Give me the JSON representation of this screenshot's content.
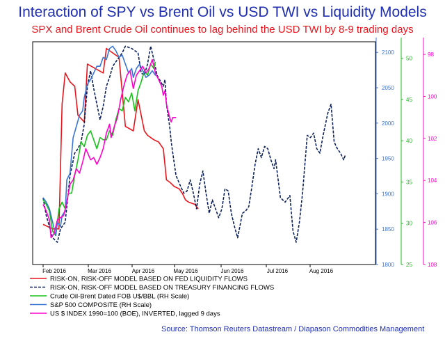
{
  "chart_data": {
    "type": "line",
    "title": "Interaction of SPY vs Brent Oil vs USD TWI vs Liquidity Models",
    "subtitle": "SPX and Brent Crude Oil continues to lag behind the USD TWI by 8-9 trading days",
    "source": "Source: Thomson Reuters Datastream / Diapason Commodities Management",
    "x_labels": [
      "Feb 2016",
      "Mar 2016",
      "Apr 2016",
      "May 2016",
      "Jun 2016",
      "Jul 2016",
      "Aug 2016"
    ],
    "axes": {
      "sp500": {
        "ticks": [
          "1800",
          "1850",
          "1900",
          "1950",
          "2000",
          "2050",
          "2100"
        ],
        "range": [
          1800,
          2115
        ],
        "color": "#3a75d6"
      },
      "brent": {
        "ticks": [
          "25",
          "30",
          "35",
          "40",
          "45",
          "50"
        ],
        "range": [
          25,
          52
        ],
        "color": "#18c21a"
      },
      "usd_inverted": {
        "ticks": [
          "98",
          "100",
          "102",
          "104",
          "106",
          "108"
        ],
        "range": [
          97.4,
          108
        ],
        "color": "#ff00cc"
      }
    },
    "series": [
      {
        "name": "RISK-ON, RISK-OFF MODEL BASED ON FED LIQUIDITY FLOWS",
        "color": "#e8141b",
        "style": "solid",
        "points": [
          [
            0,
            0.18
          ],
          [
            0.3,
            0.16
          ],
          [
            0.5,
            0.16
          ],
          [
            0.6,
            0.72
          ],
          [
            0.7,
            0.86
          ],
          [
            0.85,
            0.82
          ],
          [
            1.0,
            0.8
          ],
          [
            1.1,
            0.67
          ],
          [
            1.3,
            0.64
          ],
          [
            1.4,
            0.9
          ],
          [
            1.9,
            0.86
          ],
          [
            2.0,
            0.97
          ],
          [
            2.4,
            0.93
          ],
          [
            2.6,
            0.62
          ],
          [
            2.85,
            0.6
          ],
          [
            3.0,
            0.74
          ],
          [
            3.2,
            0.6
          ],
          [
            3.3,
            0.58
          ],
          [
            3.5,
            0.56
          ],
          [
            3.65,
            0.55
          ],
          [
            3.8,
            0.52
          ],
          [
            3.9,
            0.38
          ],
          [
            4.0,
            0.37
          ],
          [
            4.15,
            0.35
          ],
          [
            4.3,
            0.34
          ],
          [
            4.4,
            0.32
          ],
          [
            4.5,
            0.29
          ],
          [
            4.6,
            0.28
          ],
          [
            4.8,
            0.27
          ],
          [
            4.9,
            0.25
          ]
        ]
      },
      {
        "name": "RISK-ON, RISK-OFF  MODEL BASED ON TREASURY FINANCING FLOWS",
        "color": "#0b1f5a",
        "style": "dashed",
        "points": [
          [
            0,
            0.3
          ],
          [
            0.1,
            0.22
          ],
          [
            0.2,
            0.17
          ],
          [
            0.3,
            0.12
          ],
          [
            0.45,
            0.1
          ],
          [
            0.55,
            0.16
          ],
          [
            0.7,
            0.19
          ],
          [
            0.85,
            0.4
          ],
          [
            1.0,
            0.5
          ],
          [
            1.1,
            0.52
          ],
          [
            1.2,
            0.55
          ],
          [
            1.3,
            0.63
          ],
          [
            1.4,
            0.8
          ],
          [
            1.5,
            0.87
          ],
          [
            1.6,
            0.79
          ],
          [
            1.7,
            0.72
          ],
          [
            1.8,
            0.65
          ],
          [
            1.9,
            0.71
          ],
          [
            2.0,
            0.8
          ],
          [
            2.1,
            0.84
          ],
          [
            2.2,
            0.89
          ],
          [
            2.3,
            0.91
          ],
          [
            2.5,
            0.95
          ],
          [
            2.6,
            0.98
          ],
          [
            2.8,
            0.97
          ],
          [
            3.0,
            0.95
          ],
          [
            3.1,
            0.86
          ],
          [
            3.2,
            0.85
          ],
          [
            3.3,
            0.9
          ],
          [
            3.4,
            0.98
          ],
          [
            3.5,
            0.92
          ],
          [
            3.6,
            0.85
          ],
          [
            3.8,
            0.8
          ],
          [
            3.85,
            0.83
          ],
          [
            3.9,
            0.72
          ],
          [
            4.0,
            0.62
          ],
          [
            4.05,
            0.55
          ],
          [
            4.1,
            0.5
          ],
          [
            4.2,
            0.4
          ],
          [
            4.35,
            0.35
          ],
          [
            4.45,
            0.32
          ],
          [
            4.55,
            0.33
          ],
          [
            4.65,
            0.38
          ],
          [
            4.75,
            0.32
          ],
          [
            4.85,
            0.25
          ],
          [
            4.95,
            0.36
          ],
          [
            5.05,
            0.42
          ],
          [
            5.15,
            0.32
          ],
          [
            5.25,
            0.23
          ],
          [
            5.35,
            0.29
          ],
          [
            5.45,
            0.25
          ],
          [
            5.55,
            0.21
          ],
          [
            5.65,
            0.25
          ],
          [
            5.75,
            0.34
          ],
          [
            5.85,
            0.33
          ],
          [
            5.95,
            0.23
          ],
          [
            6.05,
            0.17
          ],
          [
            6.15,
            0.12
          ],
          [
            6.3,
            0.23
          ],
          [
            6.4,
            0.24
          ],
          [
            6.5,
            0.26
          ],
          [
            6.6,
            0.35
          ],
          [
            6.7,
            0.45
          ],
          [
            6.8,
            0.52
          ],
          [
            6.9,
            0.48
          ],
          [
            7.0,
            0.53
          ],
          [
            7.1,
            0.52
          ],
          [
            7.2,
            0.47
          ],
          [
            7.3,
            0.43
          ],
          [
            7.35,
            0.47
          ],
          [
            7.5,
            0.3
          ],
          [
            7.65,
            0.28
          ],
          [
            7.8,
            0.31
          ],
          [
            7.9,
            0.15
          ],
          [
            8.0,
            0.1
          ],
          [
            8.1,
            0.19
          ],
          [
            8.2,
            0.32
          ],
          [
            8.35,
            0.58
          ],
          [
            8.45,
            0.57
          ],
          [
            8.55,
            0.59
          ],
          [
            8.65,
            0.52
          ],
          [
            8.75,
            0.5
          ],
          [
            8.85,
            0.58
          ],
          [
            9.0,
            0.68
          ],
          [
            9.1,
            0.72
          ],
          [
            9.2,
            0.55
          ],
          [
            9.3,
            0.52
          ],
          [
            9.4,
            0.5
          ],
          [
            9.5,
            0.47
          ],
          [
            9.55,
            0.49
          ]
        ]
      },
      {
        "name": "Crude Oil-Brent Dated FOB U$/BBL (RH Scale)",
        "color": "#18c21a",
        "style": "solid",
        "points": [
          [
            0,
            0.29
          ],
          [
            0.1,
            0.27
          ],
          [
            0.2,
            0.24
          ],
          [
            0.3,
            0.15
          ],
          [
            0.4,
            0.13
          ],
          [
            0.5,
            0.25
          ],
          [
            0.6,
            0.28
          ],
          [
            0.7,
            0.25
          ],
          [
            0.8,
            0.32
          ],
          [
            0.9,
            0.32
          ],
          [
            1.0,
            0.4
          ],
          [
            1.1,
            0.47
          ],
          [
            1.2,
            0.55
          ],
          [
            1.3,
            0.53
          ],
          [
            1.4,
            0.58
          ],
          [
            1.5,
            0.6
          ],
          [
            1.6,
            0.56
          ],
          [
            1.7,
            0.52
          ],
          [
            1.8,
            0.57
          ],
          [
            1.9,
            0.56
          ],
          [
            2.0,
            0.56
          ],
          [
            2.1,
            0.6
          ],
          [
            2.2,
            0.58
          ],
          [
            2.3,
            0.65
          ],
          [
            2.4,
            0.7
          ],
          [
            2.5,
            0.69
          ],
          [
            2.6,
            0.75
          ],
          [
            2.7,
            0.73
          ],
          [
            2.8,
            0.77
          ],
          [
            2.9,
            0.69
          ],
          [
            3.0,
            0.78
          ],
          [
            3.1,
            0.82
          ],
          [
            3.2,
            0.87
          ],
          [
            3.3,
            0.85
          ],
          [
            3.4,
            0.9
          ],
          [
            3.5,
            0.88
          ],
          [
            3.55,
            0.91
          ]
        ]
      },
      {
        "name": "S&P 500 COMPOSITE (RH Scale)",
        "color": "#3a75d6",
        "style": "solid",
        "points": [
          [
            0,
            0.3
          ],
          [
            0.1,
            0.28
          ],
          [
            0.2,
            0.25
          ],
          [
            0.3,
            0.19
          ],
          [
            0.4,
            0.13
          ],
          [
            0.45,
            0.19
          ],
          [
            0.55,
            0.17
          ],
          [
            0.6,
            0.22
          ],
          [
            0.7,
            0.24
          ],
          [
            0.75,
            0.38
          ],
          [
            0.85,
            0.41
          ],
          [
            0.95,
            0.57
          ],
          [
            1.05,
            0.62
          ],
          [
            1.15,
            0.67
          ],
          [
            1.25,
            0.69
          ],
          [
            1.3,
            0.75
          ],
          [
            1.4,
            0.81
          ],
          [
            1.5,
            0.83
          ],
          [
            1.6,
            0.86
          ],
          [
            1.7,
            0.89
          ],
          [
            1.8,
            0.89
          ],
          [
            1.9,
            0.93
          ],
          [
            2.0,
            0.92
          ],
          [
            2.1,
            0.97
          ],
          [
            2.2,
            0.98
          ],
          [
            2.3,
            0.96
          ],
          [
            2.4,
            0.93
          ],
          [
            2.5,
            0.94
          ],
          [
            2.6,
            0.9
          ],
          [
            2.7,
            0.86
          ],
          [
            2.8,
            0.88
          ],
          [
            2.85,
            0.84
          ],
          [
            2.95,
            0.88
          ],
          [
            3.05,
            0.9
          ],
          [
            3.15,
            0.87
          ],
          [
            3.25,
            0.84
          ],
          [
            3.35,
            0.85
          ],
          [
            3.45,
            0.87
          ],
          [
            3.55,
            0.85
          ],
          [
            3.6,
            0.85
          ]
        ]
      },
      {
        "name": "US $ INDEX 1990=100 (BOE), INVERTED, lagged 9 days",
        "color": "#ff00cc",
        "style": "solid",
        "points": [
          [
            0,
            0.27
          ],
          [
            0.1,
            0.24
          ],
          [
            0.2,
            0.2
          ],
          [
            0.25,
            0.12
          ],
          [
            0.35,
            0.14
          ],
          [
            0.45,
            0.2
          ],
          [
            0.55,
            0.21
          ],
          [
            0.65,
            0.22
          ],
          [
            0.75,
            0.28
          ],
          [
            0.85,
            0.36
          ],
          [
            0.95,
            0.38
          ],
          [
            1.05,
            0.43
          ],
          [
            1.15,
            0.41
          ],
          [
            1.25,
            0.46
          ],
          [
            1.35,
            0.52
          ],
          [
            1.5,
            0.47
          ],
          [
            1.6,
            0.48
          ],
          [
            1.7,
            0.45
          ],
          [
            1.8,
            0.48
          ],
          [
            1.9,
            0.52
          ],
          [
            2.0,
            0.59
          ],
          [
            2.1,
            0.63
          ],
          [
            2.15,
            0.57
          ],
          [
            2.25,
            0.62
          ],
          [
            2.35,
            0.66
          ],
          [
            2.45,
            0.74
          ],
          [
            2.55,
            0.8
          ],
          [
            2.65,
            0.85
          ],
          [
            2.75,
            0.87
          ],
          [
            2.85,
            0.79
          ],
          [
            2.95,
            0.85
          ],
          [
            3.05,
            0.87
          ],
          [
            3.15,
            0.89
          ],
          [
            3.25,
            0.86
          ],
          [
            3.35,
            0.88
          ],
          [
            3.45,
            0.92
          ],
          [
            3.55,
            0.86
          ],
          [
            3.65,
            0.83
          ],
          [
            3.75,
            0.8
          ],
          [
            3.8,
            0.76
          ],
          [
            3.85,
            0.78
          ],
          [
            3.9,
            0.72
          ],
          [
            4.0,
            0.66
          ],
          [
            4.05,
            0.64
          ],
          [
            4.1,
            0.66
          ],
          [
            4.2,
            0.66
          ]
        ]
      }
    ]
  }
}
